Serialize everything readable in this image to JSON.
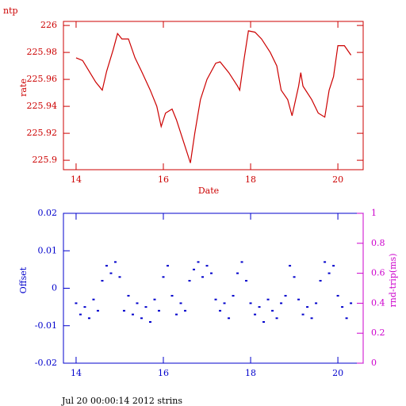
{
  "chart_data": [
    {
      "type": "line",
      "title": "ntp",
      "ylabel": "rate",
      "xlabel": "Date",
      "axis_color": "#cc0000",
      "color": "#cc0000",
      "xlim": [
        13.71,
        20.58
      ],
      "xticks": [
        14,
        16,
        18,
        20
      ],
      "ylim": [
        225.893,
        226.003
      ],
      "yticks": [
        226,
        225.98,
        225.96,
        225.94,
        225.92,
        225.9
      ],
      "x": [
        14.0,
        14.15,
        14.3,
        14.45,
        14.6,
        14.7,
        14.85,
        14.95,
        15.05,
        15.2,
        15.35,
        15.5,
        15.7,
        15.85,
        15.95,
        16.05,
        16.2,
        16.3,
        16.4,
        16.5,
        16.62,
        16.72,
        16.85,
        17.0,
        17.2,
        17.3,
        17.5,
        17.7,
        17.75,
        17.85,
        17.95,
        18.1,
        18.25,
        18.45,
        18.6,
        18.7,
        18.85,
        18.95,
        19.1,
        19.15,
        19.2,
        19.4,
        19.55,
        19.7,
        19.8,
        19.9,
        20.0,
        20.15,
        20.3
      ],
      "values": [
        225.976,
        225.974,
        225.966,
        225.958,
        225.952,
        225.966,
        225.982,
        225.994,
        225.99,
        225.99,
        225.976,
        225.966,
        225.952,
        225.94,
        225.925,
        225.935,
        225.938,
        225.93,
        225.92,
        225.91,
        225.898,
        225.92,
        225.945,
        225.96,
        225.972,
        225.973,
        225.965,
        225.955,
        225.952,
        225.975,
        225.996,
        225.995,
        225.99,
        225.98,
        225.97,
        225.952,
        225.945,
        225.933,
        225.955,
        225.965,
        225.955,
        225.945,
        225.935,
        225.932,
        225.952,
        225.962,
        225.985,
        225.985,
        225.978
      ]
    },
    {
      "type": "scatter",
      "ylabel": "Offset",
      "y2label": "rnd-trip(ms)",
      "axis_color": "#0000cc",
      "y2_color": "#cc00cc",
      "color": "#0000cc",
      "xlim": [
        13.71,
        20.58
      ],
      "xticks": [
        14,
        16,
        18,
        20
      ],
      "ylim": [
        -0.02,
        0.02
      ],
      "yticks": [
        0.02,
        0.01,
        0,
        -0.01,
        -0.02
      ],
      "y2lim": [
        0,
        1
      ],
      "y2ticks": [
        1,
        0.8,
        0.6,
        0.4,
        0.2,
        0
      ],
      "x": [
        14.0,
        14.1,
        14.2,
        14.3,
        14.4,
        14.5,
        14.6,
        14.7,
        14.8,
        14.9,
        15.0,
        15.1,
        15.2,
        15.3,
        15.4,
        15.5,
        15.6,
        15.7,
        15.8,
        15.9,
        16.0,
        16.1,
        16.2,
        16.3,
        16.4,
        16.5,
        16.6,
        16.7,
        16.8,
        16.9,
        17.0,
        17.1,
        17.2,
        17.3,
        17.4,
        17.5,
        17.6,
        17.7,
        17.8,
        17.9,
        18.0,
        18.1,
        18.2,
        18.3,
        18.4,
        18.5,
        18.6,
        18.7,
        18.8,
        18.9,
        19.0,
        19.1,
        19.2,
        19.3,
        19.4,
        19.5,
        19.6,
        19.7,
        19.8,
        19.9,
        20.0,
        20.1,
        20.2,
        20.3
      ],
      "values": [
        -0.004,
        -0.007,
        -0.005,
        -0.008,
        -0.003,
        -0.006,
        0.002,
        0.006,
        0.004,
        0.007,
        0.003,
        -0.006,
        -0.002,
        -0.007,
        -0.004,
        -0.008,
        -0.005,
        -0.009,
        -0.003,
        -0.006,
        0.003,
        0.006,
        -0.002,
        -0.007,
        -0.004,
        -0.006,
        0.002,
        0.005,
        0.007,
        0.003,
        0.006,
        0.004,
        -0.003,
        -0.006,
        -0.004,
        -0.008,
        -0.002,
        0.004,
        0.007,
        0.002,
        -0.004,
        -0.007,
        -0.005,
        -0.009,
        -0.003,
        -0.006,
        -0.008,
        -0.004,
        -0.002,
        0.006,
        0.003,
        -0.003,
        -0.007,
        -0.005,
        -0.008,
        -0.004,
        0.002,
        0.007,
        0.004,
        0.006,
        -0.002,
        -0.005,
        -0.008,
        -0.004
      ]
    }
  ],
  "footer": "Jul 20 00:00:14 2012 strins"
}
